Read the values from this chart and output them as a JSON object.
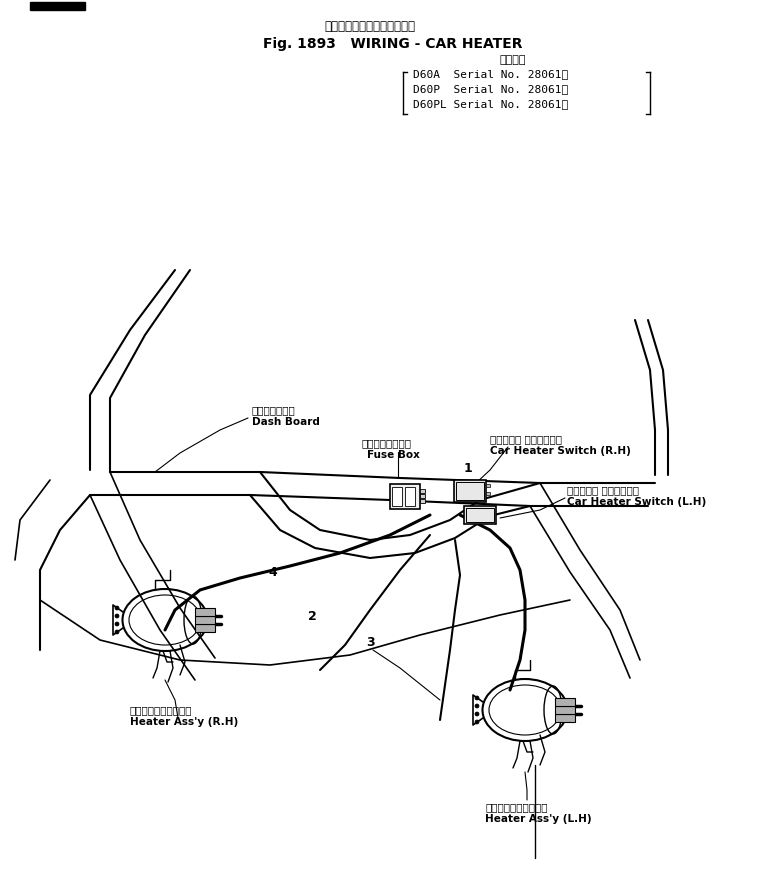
{
  "title_jp": "ワイヤリング　カー　ヒータ",
  "title_en": "Fig. 1893   WIRING - CAR HEATER",
  "applicable_jp": "適用号機",
  "model1": "D60A  Serial No. 28061～",
  "model2": "D60P  Serial No. 28061～",
  "model3": "D60PL Serial No. 28061～",
  "dash_board_jp": "ダッシュボード",
  "dash_board_en": "Dash Board",
  "fuse_box_jp": "ヒューズボックス",
  "fuse_box_en": "Fuse Box",
  "car_heater_rh_jp": "カーヒータ スイッチ　右",
  "car_heater_rh_en": "Car Heater Switch (R.H)",
  "car_heater_lh_jp": "カーヒータ スイッチ　左",
  "car_heater_lh_en": "Car Heater Switch (L.H)",
  "heater_assy_rh_jp": "ヒータアセンブリ　右",
  "heater_assy_rh_en": "Heater Ass'y (R.H)",
  "heater_assy_lh_jp": "ヒータアセンブリ　左",
  "heater_assy_lh_en": "Heater Ass'y (L.H)",
  "bg_color": "#ffffff",
  "line_color": "#000000"
}
